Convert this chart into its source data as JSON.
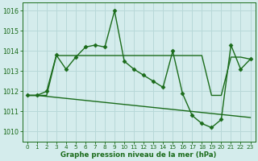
{
  "line1": {
    "x": [
      0,
      1,
      2,
      3,
      4,
      5,
      6,
      7,
      8,
      9,
      10,
      11,
      12,
      13,
      14,
      15,
      16,
      17,
      18,
      19,
      20,
      21,
      22,
      23
    ],
    "y": [
      1011.8,
      1011.8,
      1012.0,
      1013.8,
      1013.1,
      1013.7,
      1014.2,
      1014.3,
      1014.2,
      1016.0,
      1013.5,
      1013.1,
      1012.8,
      1012.5,
      1012.2,
      1014.0,
      1011.9,
      1010.8,
      1010.4,
      1010.2,
      1010.6,
      1014.3,
      1013.1,
      1013.6
    ],
    "color": "#1a6b1a",
    "linewidth": 1.0,
    "marker": "D",
    "markersize": 2.5
  },
  "line2_x": [
    0,
    1,
    2,
    3,
    4,
    5,
    6,
    7,
    8,
    9,
    10,
    11,
    12,
    13,
    14,
    15,
    16,
    17,
    18,
    19,
    20,
    21,
    22,
    23
  ],
  "line2_y": [
    1011.8,
    1011.8,
    1011.8,
    1013.78,
    1013.78,
    1013.78,
    1013.78,
    1013.78,
    1013.78,
    1013.78,
    1013.78,
    1013.78,
    1013.78,
    1013.78,
    1013.78,
    1013.78,
    1013.78,
    1013.78,
    1013.78,
    1011.8,
    1011.8,
    1013.7,
    1013.7,
    1013.6
  ],
  "line3_x": [
    0,
    1,
    2,
    3,
    4,
    5,
    6,
    7,
    8,
    9,
    10,
    11,
    12,
    13,
    14,
    15,
    16,
    17,
    18,
    19,
    20,
    21,
    22,
    23
  ],
  "line3_y": [
    1011.8,
    1011.8,
    1011.75,
    1011.7,
    1011.65,
    1011.6,
    1011.55,
    1011.5,
    1011.45,
    1011.4,
    1011.35,
    1011.3,
    1011.25,
    1011.2,
    1011.15,
    1011.1,
    1011.05,
    1011.0,
    1010.95,
    1010.9,
    1010.85,
    1010.8,
    1010.75,
    1010.7
  ],
  "line_color": "#1a6b1a",
  "linewidth": 1.0,
  "bg_color": "#d4ecec",
  "grid_color": "#b8d8d8",
  "text_color": "#1a6b1a",
  "xlim": [
    -0.5,
    23.5
  ],
  "ylim": [
    1009.5,
    1016.4
  ],
  "yticks": [
    1010,
    1011,
    1012,
    1013,
    1014,
    1015,
    1016
  ],
  "xticks": [
    0,
    1,
    2,
    3,
    4,
    5,
    6,
    7,
    8,
    9,
    10,
    11,
    12,
    13,
    14,
    15,
    16,
    17,
    18,
    19,
    20,
    21,
    22,
    23
  ],
  "xlabel": "Graphe pression niveau de la mer (hPa)"
}
